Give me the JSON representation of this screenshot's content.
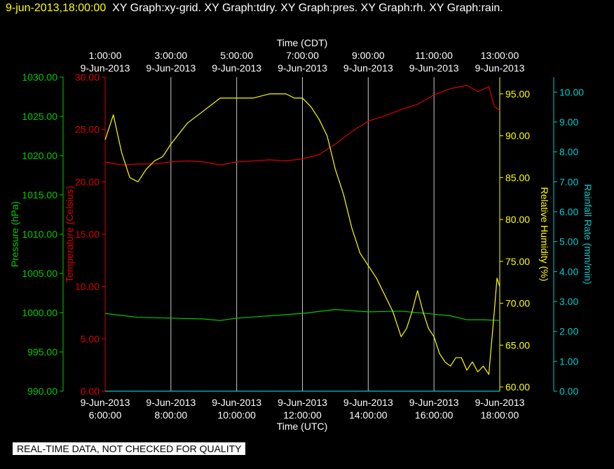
{
  "header": {
    "timestamp": "9-jun-2013,18:00:00",
    "graphs": "XY Graph:xy-grid.  XY Graph:tdry.  XY Graph:pres.  XY Graph:rh.  XY Graph:rain."
  },
  "notice": "REAL-TIME DATA, NOT CHECKED FOR QUALITY",
  "colors": {
    "pressure": "#00cc00",
    "temperature": "#dd0000",
    "humidity": "#ffff00",
    "rain": "#00cccc",
    "grid": "#c8c8c8"
  },
  "chart_data": {
    "type": "line",
    "top_axis": {
      "label": "Time (CDT)",
      "ticks": [
        {
          "time": "1:00:00",
          "date": "9-Jun-2013"
        },
        {
          "time": "3:00:00",
          "date": "9-Jun-2013"
        },
        {
          "time": "5:00:00",
          "date": "9-Jun-2013"
        },
        {
          "time": "7:00:00",
          "date": "9-Jun-2013"
        },
        {
          "time": "9:00:00",
          "date": "9-Jun-2013"
        },
        {
          "time": "11:00:00",
          "date": "9-Jun-2013"
        },
        {
          "time": "13:00:00",
          "date": "9-Jun-2013"
        }
      ]
    },
    "bottom_axis": {
      "label": "Time (UTC)",
      "ticks": [
        {
          "date": "9-Jun-2013",
          "time": "6:00:00"
        },
        {
          "date": "9-Jun-2013",
          "time": "8:00:00"
        },
        {
          "date": "9-Jun-2013",
          "time": "10:00:00"
        },
        {
          "date": "9-Jun-2013",
          "time": "12:00:00"
        },
        {
          "date": "9-Jun-2013",
          "time": "14:00:00"
        },
        {
          "date": "9-Jun-2013",
          "time": "16:00:00"
        },
        {
          "date": "9-Jun-2013",
          "time": "18:00:00"
        }
      ]
    },
    "grid": true,
    "axes": {
      "pressure": {
        "label": "Pressure (hPa)",
        "ylim": [
          990,
          1030
        ],
        "ticks": [
          "990.00",
          "995.00",
          "1000.00",
          "1005.00",
          "1010.00",
          "1015.00",
          "1020.00",
          "1025.00",
          "1030.00"
        ]
      },
      "temperature": {
        "label": "Temperature (Celsius)",
        "ylim": [
          0,
          30
        ],
        "ticks": [
          "0.00",
          "5.00",
          "10.00",
          "15.00",
          "20.00",
          "25.00",
          "30.00"
        ]
      },
      "humidity": {
        "label": "Relative Humidity (%)",
        "ylim": [
          59.5,
          97
        ],
        "ticks": [
          "60.00",
          "65.00",
          "70.00",
          "75.00",
          "80.00",
          "85.00",
          "90.00",
          "95.00"
        ]
      },
      "rain": {
        "label": "Rainfall Rate (mm/min)",
        "ylim": [
          0,
          10.5
        ],
        "ticks": [
          "0.00",
          "1.00",
          "2.00",
          "3.00",
          "4.00",
          "5.00",
          "6.00",
          "7.00",
          "8.00",
          "9.00",
          "10.00"
        ]
      }
    },
    "series": [
      {
        "name": "Temperature (Celsius)",
        "axis": "temperature",
        "x": [
          "06:00",
          "06:30",
          "07:00",
          "07:30",
          "08:00",
          "08:30",
          "09:00",
          "09:30",
          "10:00",
          "10:30",
          "11:00",
          "11:30",
          "12:00",
          "12:30",
          "13:00",
          "13:30",
          "14:00",
          "14:30",
          "15:00",
          "15:30",
          "16:00",
          "16:30",
          "17:00",
          "17:20",
          "17:40",
          "17:50",
          "18:00"
        ],
        "values": [
          21.9,
          21.6,
          21.7,
          21.7,
          21.9,
          22.0,
          21.9,
          21.6,
          21.9,
          22.0,
          22.1,
          22.0,
          22.2,
          22.6,
          23.6,
          24.8,
          25.8,
          26.3,
          26.9,
          27.4,
          28.3,
          28.9,
          29.2,
          28.6,
          29.1,
          27.2,
          26.8
        ]
      },
      {
        "name": "Pressure (hPa)",
        "axis": "pressure",
        "x": [
          "06:00",
          "07:00",
          "08:00",
          "09:00",
          "09:30",
          "10:00",
          "11:00",
          "12:00",
          "13:00",
          "14:00",
          "15:00",
          "16:00",
          "16:30",
          "17:00",
          "17:30",
          "18:00"
        ],
        "values": [
          999.9,
          999.4,
          999.3,
          999.2,
          999.0,
          999.3,
          999.6,
          999.9,
          1000.4,
          1000.1,
          1000.2,
          999.8,
          999.6,
          999.1,
          999.1,
          999.0
        ]
      },
      {
        "name": "Relative Humidity (%)",
        "axis": "humidity",
        "x": [
          "06:00",
          "06:15",
          "06:30",
          "06:45",
          "07:00",
          "07:15",
          "07:30",
          "07:45",
          "08:00",
          "08:30",
          "09:00",
          "09:30",
          "10:00",
          "10:30",
          "11:00",
          "11:30",
          "11:45",
          "12:00",
          "12:15",
          "12:30",
          "12:45",
          "13:00",
          "13:15",
          "13:30",
          "13:45",
          "14:00",
          "14:15",
          "14:30",
          "14:45",
          "15:00",
          "15:10",
          "15:20",
          "15:30",
          "15:40",
          "15:50",
          "16:00",
          "16:10",
          "16:20",
          "16:30",
          "16:40",
          "16:50",
          "17:00",
          "17:10",
          "17:20",
          "17:30",
          "17:40",
          "17:50",
          "17:55",
          "18:00"
        ],
        "values": [
          89.5,
          92.5,
          88,
          85,
          84.5,
          86,
          87,
          87.5,
          89,
          91.5,
          93,
          94.5,
          94.5,
          94.5,
          95,
          95,
          94.5,
          94.5,
          93.5,
          92,
          90,
          86,
          83,
          79,
          76,
          74.5,
          73,
          71,
          69,
          66,
          67,
          69,
          71.5,
          69,
          67,
          66,
          64,
          63,
          62.5,
          63.5,
          63.5,
          62,
          63,
          61.8,
          62.5,
          61.5,
          69,
          73,
          72
        ]
      },
      {
        "name": "Rainfall Rate (mm/min)",
        "axis": "rain",
        "x": [
          "06:00",
          "18:00"
        ],
        "values": [
          0.0,
          0.0
        ]
      }
    ]
  }
}
